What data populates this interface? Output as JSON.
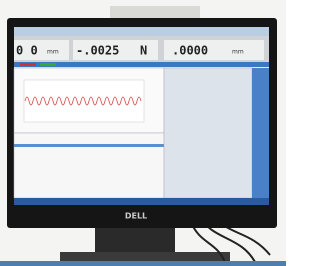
{
  "readouts": [
    {
      "value": "0 0",
      "unit": "mm"
    },
    {
      "value": "-.0025",
      "unit": "N"
    },
    {
      "value": ".0000",
      "unit": "mm"
    }
  ],
  "brand": "DELL"
}
